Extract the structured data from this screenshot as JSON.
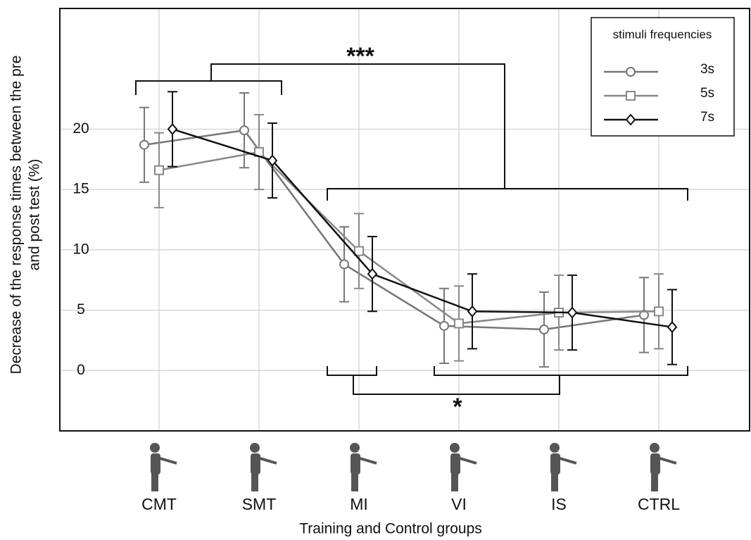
{
  "chart_data": {
    "type": "line",
    "ylabel": [
      "Decrease of the response times between the pre",
      "and post test (%)"
    ],
    "xlabel": "Training and Control groups",
    "categories": [
      "CMT",
      "SMT",
      "MI",
      "VI",
      "IS",
      "CTRL"
    ],
    "ylim": [
      -5,
      30
    ],
    "yticks": [
      0,
      5,
      10,
      15,
      20
    ],
    "grid": true,
    "legend_title": "stimuli frequencies",
    "legend": "upper right",
    "annotations": [
      "***",
      "*"
    ],
    "series": [
      {
        "name": "3s",
        "color": "#777777",
        "marker": "circle",
        "values": [
          18.7,
          19.9,
          8.8,
          3.7,
          3.4,
          4.6
        ],
        "errors": [
          3.1,
          3.1,
          3.1,
          3.1,
          3.1,
          3.1
        ]
      },
      {
        "name": "5s",
        "color": "#888888",
        "marker": "square",
        "values": [
          16.6,
          18.1,
          9.9,
          3.9,
          4.8,
          4.9
        ],
        "errors": [
          3.1,
          3.1,
          3.1,
          3.1,
          3.1,
          3.1
        ]
      },
      {
        "name": "7s",
        "color": "#111111",
        "marker": "diamond",
        "values": [
          20.0,
          17.4,
          8.0,
          4.9,
          4.8,
          3.6
        ],
        "errors": [
          3.1,
          3.1,
          3.1,
          3.1,
          3.1,
          3.1
        ]
      }
    ]
  }
}
